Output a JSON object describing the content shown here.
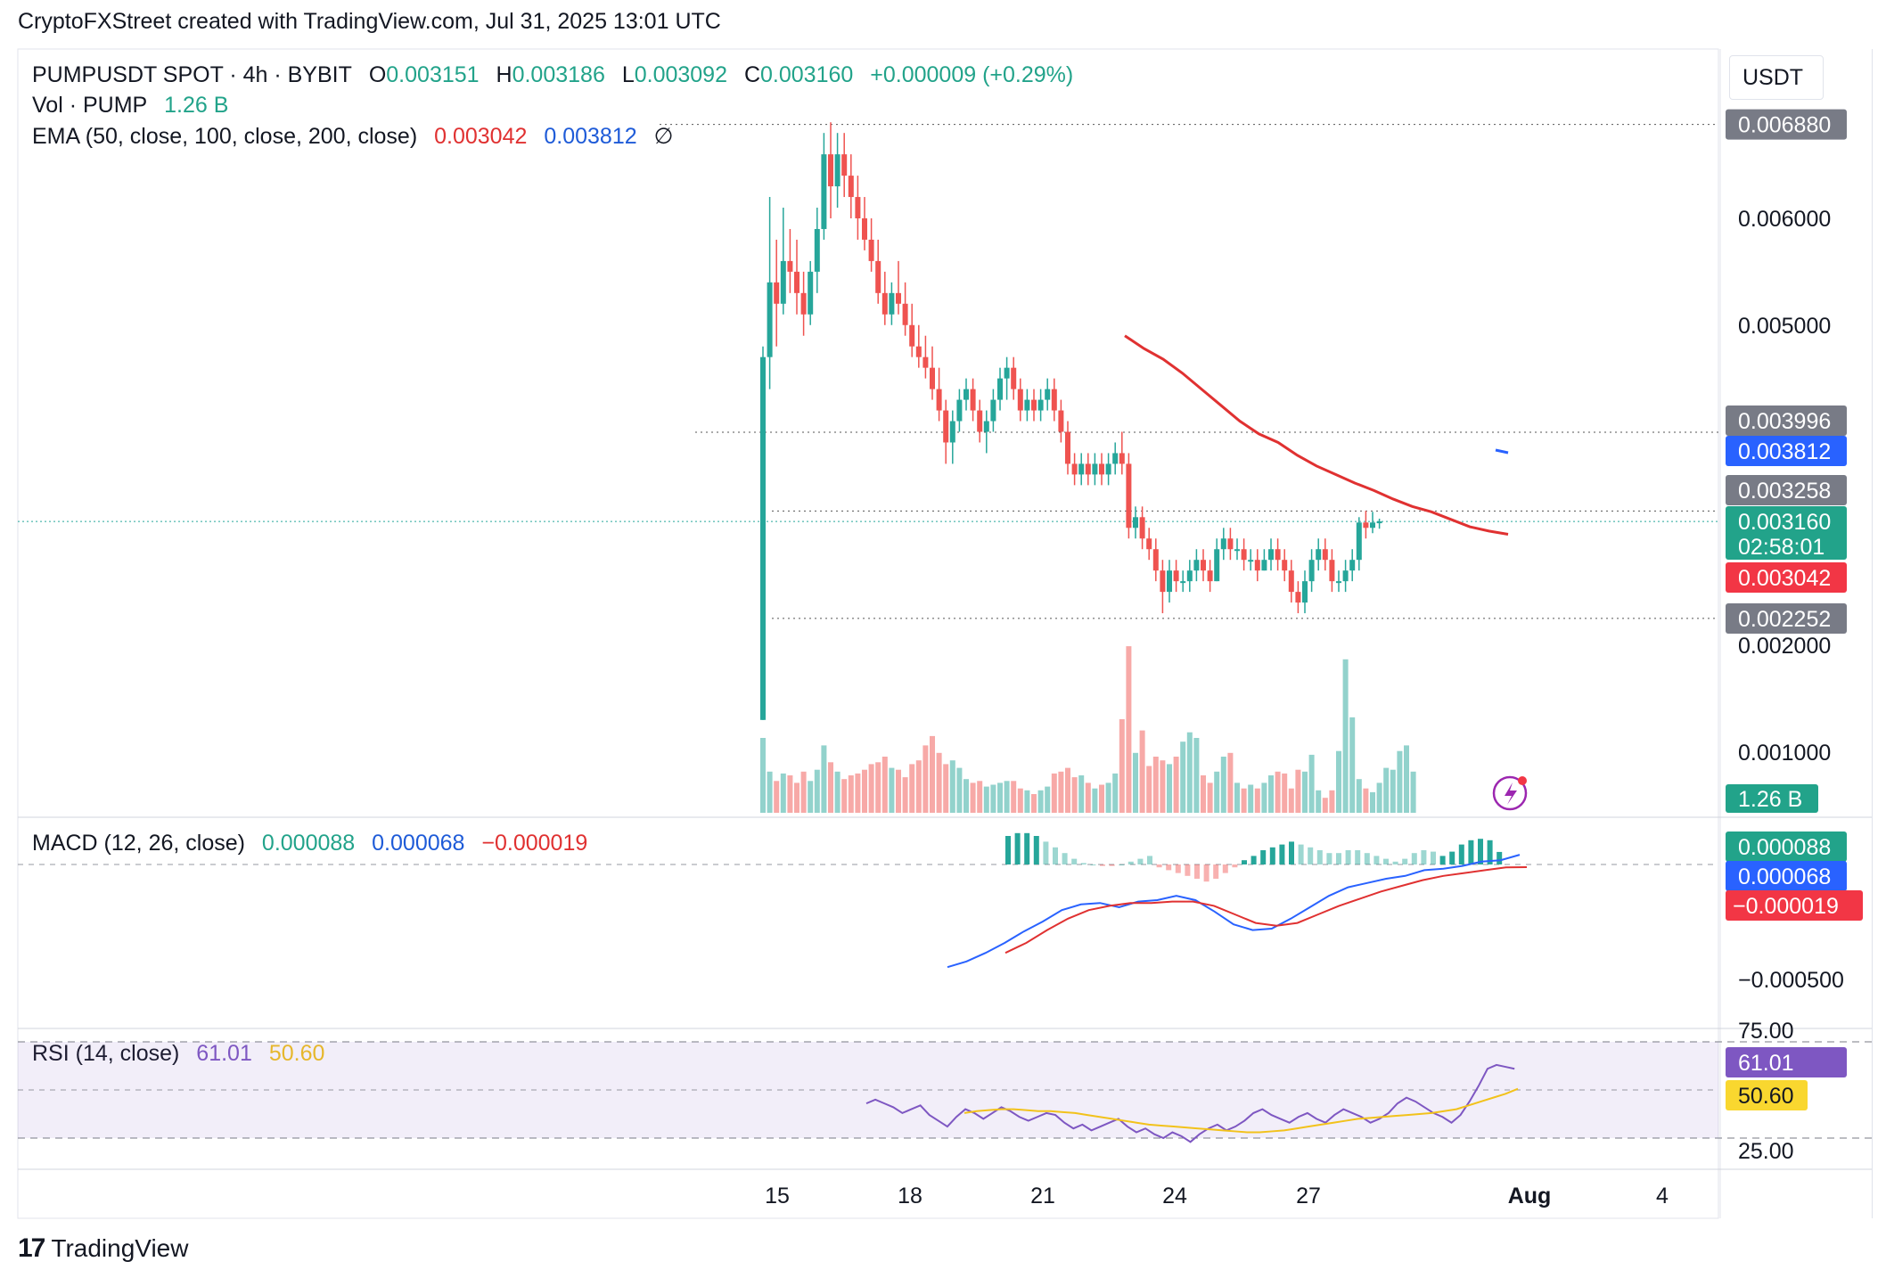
{
  "header": {
    "attribution": "CryptoFXStreet created with TradingView.com, Jul 31, 2025 13:01 UTC"
  },
  "legend": {
    "symbol": "PUMPUSDT SPOT · 4h · BYBIT",
    "open_label": "O",
    "open": "0.003151",
    "high_label": "H",
    "high": "0.003186",
    "low_label": "L",
    "low": "0.003092",
    "close_label": "C",
    "close": "0.003160",
    "change": "+0.000009 (+0.29%)",
    "vol_label": "Vol · PUMP",
    "vol_value": "1.26 B",
    "ema_label": "EMA (50, close, 100, close, 200, close)",
    "ema_50": "0.003042",
    "ema_100": "0.003812",
    "ema_200": "∅",
    "macd_label": "MACD (12, 26, close)",
    "macd_hist": "0.000088",
    "macd_line": "0.000068",
    "macd_signal": "−0.000019",
    "rsi_label": "RSI (14, close)",
    "rsi_value": "61.01",
    "rsi_ma": "50.60"
  },
  "price_axis": {
    "unit": "USDT",
    "ticks": [
      "0.006000",
      "0.005000",
      "0.002000",
      "0.001000"
    ],
    "macd_ticks": [
      "−0.000500"
    ],
    "rsi_ticks": [
      "75.00",
      "25.00"
    ]
  },
  "price_tags": {
    "high_line": "0.006880",
    "level_1": "0.003996",
    "ema_100": "0.003812",
    "level_2": "0.003258",
    "last": "0.003160",
    "countdown": "02:58:01",
    "ema_50": "0.003042",
    "level_3": "0.002252",
    "volume": "1.26 B",
    "macd_hist": "0.000088",
    "macd_line": "0.000068",
    "macd_signal": "−0.000019",
    "rsi": "61.01",
    "rsi_ma": "50.60"
  },
  "time_axis": {
    "labels": [
      "15",
      "18",
      "21",
      "24",
      "27",
      "Aug",
      "4"
    ]
  },
  "footer": {
    "brand": "TradingView",
    "logo": "17"
  },
  "colors": {
    "up": "#26a69a",
    "down": "#ef5350",
    "ema50": "#e03131",
    "ema100": "#2962ff",
    "macd": "#2962ff",
    "signal": "#e03131",
    "rsi": "#7e57c2",
    "rsi_ma": "#f2c21b",
    "tag_gray": "#787b86",
    "tag_green": "#22a38a",
    "tag_red": "#f23645",
    "tag_blue": "#2962ff",
    "tag_purple": "#7e57c2",
    "tag_yellow": "#f9d72f"
  },
  "chart_data": {
    "type": "candlestick",
    "symbol": "PUMPUSDT",
    "interval": "4h",
    "x_labels": [
      "15",
      "18",
      "21",
      "24",
      "27",
      "Aug",
      "4"
    ],
    "ylim": [
      0.0014,
      0.0072
    ],
    "horizontal_levels": [
      0.00688,
      0.003996,
      0.003258,
      0.002252
    ],
    "last_close": 0.00316,
    "ema_50": 0.003042,
    "ema_100": 0.003812,
    "volume_last": "1.26 B",
    "macd": {
      "histogram": 8.8e-05,
      "macd": 6.8e-05,
      "signal": -1.9e-05
    },
    "rsi": {
      "value": 61.01,
      "ma": 50.6,
      "bands": [
        75,
        25
      ]
    },
    "candles": [
      [
        0.0013,
        0.0048,
        0.0013,
        0.0047
      ],
      [
        0.0047,
        0.0062,
        0.0044,
        0.0054
      ],
      [
        0.0054,
        0.0058,
        0.0048,
        0.0052
      ],
      [
        0.0052,
        0.0061,
        0.0051,
        0.0056
      ],
      [
        0.0056,
        0.0059,
        0.0053,
        0.0055
      ],
      [
        0.0055,
        0.0058,
        0.0051,
        0.0053
      ],
      [
        0.0053,
        0.0055,
        0.0049,
        0.0051
      ],
      [
        0.0051,
        0.0056,
        0.005,
        0.0055
      ],
      [
        0.0055,
        0.0061,
        0.0053,
        0.0059
      ],
      [
        0.0059,
        0.0068,
        0.0058,
        0.0066
      ],
      [
        0.0066,
        0.0069,
        0.006,
        0.0063
      ],
      [
        0.0063,
        0.0068,
        0.0061,
        0.0066
      ],
      [
        0.0066,
        0.0068,
        0.0062,
        0.0064
      ],
      [
        0.0064,
        0.0066,
        0.006,
        0.0062
      ],
      [
        0.0062,
        0.0064,
        0.0058,
        0.006
      ],
      [
        0.006,
        0.0062,
        0.0057,
        0.0058
      ],
      [
        0.0058,
        0.006,
        0.0055,
        0.0056
      ],
      [
        0.0056,
        0.0058,
        0.0052,
        0.0053
      ],
      [
        0.0053,
        0.0055,
        0.005,
        0.0051
      ],
      [
        0.0051,
        0.0054,
        0.005,
        0.0053
      ],
      [
        0.0053,
        0.0056,
        0.0051,
        0.0052
      ],
      [
        0.0052,
        0.0054,
        0.0049,
        0.005
      ],
      [
        0.005,
        0.0052,
        0.0047,
        0.0048
      ],
      [
        0.0048,
        0.005,
        0.0046,
        0.0047
      ],
      [
        0.0047,
        0.0049,
        0.0045,
        0.0046
      ],
      [
        0.0046,
        0.0048,
        0.0043,
        0.0044
      ],
      [
        0.0044,
        0.0046,
        0.0041,
        0.0042
      ],
      [
        0.0042,
        0.0043,
        0.0037,
        0.0039
      ],
      [
        0.0039,
        0.0042,
        0.0037,
        0.0041
      ],
      [
        0.0041,
        0.0044,
        0.004,
        0.0043
      ],
      [
        0.0043,
        0.0045,
        0.0042,
        0.0044
      ],
      [
        0.0044,
        0.0045,
        0.0041,
        0.0042
      ],
      [
        0.0042,
        0.0043,
        0.0039,
        0.004
      ],
      [
        0.004,
        0.0042,
        0.0038,
        0.0041
      ],
      [
        0.0041,
        0.0044,
        0.004,
        0.0043
      ],
      [
        0.0043,
        0.0046,
        0.0042,
        0.0045
      ],
      [
        0.0045,
        0.0047,
        0.0043,
        0.0046
      ],
      [
        0.0046,
        0.0047,
        0.0043,
        0.0044
      ],
      [
        0.0044,
        0.0045,
        0.0041,
        0.0042
      ],
      [
        0.0042,
        0.0044,
        0.0041,
        0.0043
      ],
      [
        0.0043,
        0.0044,
        0.0041,
        0.0042
      ],
      [
        0.0042,
        0.0044,
        0.0041,
        0.0043
      ],
      [
        0.0043,
        0.0045,
        0.0042,
        0.0044
      ],
      [
        0.0044,
        0.0045,
        0.0041,
        0.0042
      ],
      [
        0.0042,
        0.0043,
        0.0039,
        0.004
      ],
      [
        0.004,
        0.0041,
        0.0036,
        0.0037
      ],
      [
        0.0037,
        0.0038,
        0.0035,
        0.0036
      ],
      [
        0.0036,
        0.0038,
        0.0035,
        0.0037
      ],
      [
        0.0037,
        0.0038,
        0.0035,
        0.0036
      ],
      [
        0.0036,
        0.0038,
        0.0035,
        0.0037
      ],
      [
        0.0037,
        0.0038,
        0.0035,
        0.0036
      ],
      [
        0.0036,
        0.0038,
        0.0035,
        0.0037
      ],
      [
        0.0037,
        0.0039,
        0.0036,
        0.0038
      ],
      [
        0.0038,
        0.004,
        0.0036,
        0.0037
      ],
      [
        0.0037,
        0.0038,
        0.003,
        0.0031
      ],
      [
        0.0031,
        0.0033,
        0.003,
        0.0032
      ],
      [
        0.0032,
        0.0033,
        0.0029,
        0.003
      ],
      [
        0.003,
        0.0031,
        0.0028,
        0.0029
      ],
      [
        0.0029,
        0.003,
        0.0026,
        0.0027
      ],
      [
        0.0027,
        0.0028,
        0.0023,
        0.0025
      ],
      [
        0.0025,
        0.0028,
        0.0024,
        0.0027
      ],
      [
        0.0027,
        0.0028,
        0.0025,
        0.0026
      ],
      [
        0.0026,
        0.0027,
        0.0025,
        0.0026
      ],
      [
        0.0026,
        0.0028,
        0.0025,
        0.0027
      ],
      [
        0.0027,
        0.0029,
        0.0026,
        0.0028
      ],
      [
        0.0028,
        0.0029,
        0.0026,
        0.0027
      ],
      [
        0.0027,
        0.0028,
        0.0025,
        0.0026
      ],
      [
        0.0026,
        0.003,
        0.0026,
        0.0029
      ],
      [
        0.0029,
        0.0031,
        0.0028,
        0.003
      ],
      [
        0.003,
        0.0031,
        0.0028,
        0.0029
      ],
      [
        0.0029,
        0.003,
        0.0028,
        0.0029
      ],
      [
        0.0029,
        0.003,
        0.0027,
        0.0028
      ],
      [
        0.0028,
        0.0029,
        0.0027,
        0.0028
      ],
      [
        0.0028,
        0.0029,
        0.0026,
        0.0027
      ],
      [
        0.0027,
        0.0029,
        0.0027,
        0.0028
      ],
      [
        0.0028,
        0.003,
        0.0027,
        0.0029
      ],
      [
        0.0029,
        0.003,
        0.0027,
        0.0028
      ],
      [
        0.0028,
        0.0029,
        0.0026,
        0.0027
      ],
      [
        0.0027,
        0.0028,
        0.0024,
        0.0025
      ],
      [
        0.0025,
        0.0026,
        0.0023,
        0.0024
      ],
      [
        0.0024,
        0.0027,
        0.0023,
        0.0026
      ],
      [
        0.0026,
        0.0029,
        0.0025,
        0.0028
      ],
      [
        0.0028,
        0.003,
        0.0027,
        0.0029
      ],
      [
        0.0029,
        0.003,
        0.0027,
        0.0028
      ],
      [
        0.0028,
        0.0029,
        0.0025,
        0.0026
      ],
      [
        0.0026,
        0.0027,
        0.0025,
        0.0026
      ],
      [
        0.0026,
        0.0028,
        0.0025,
        0.0027
      ],
      [
        0.0027,
        0.0029,
        0.0026,
        0.0028
      ],
      [
        0.0028,
        0.0032,
        0.0027,
        0.00315
      ],
      [
        0.00315,
        0.00326,
        0.003,
        0.0031
      ],
      [
        0.0031,
        0.00325,
        0.00305,
        0.00315
      ],
      [
        0.00315,
        0.003186,
        0.003092,
        0.00316
      ]
    ],
    "volume": [
      0.4,
      0.22,
      0.17,
      0.21,
      0.2,
      0.16,
      0.22,
      0.17,
      0.23,
      0.36,
      0.27,
      0.22,
      0.18,
      0.2,
      0.21,
      0.23,
      0.26,
      0.27,
      0.3,
      0.24,
      0.23,
      0.19,
      0.26,
      0.28,
      0.36,
      0.41,
      0.32,
      0.26,
      0.28,
      0.24,
      0.18,
      0.16,
      0.17,
      0.14,
      0.15,
      0.16,
      0.17,
      0.17,
      0.13,
      0.12,
      0.1,
      0.12,
      0.14,
      0.21,
      0.22,
      0.24,
      0.19,
      0.2,
      0.16,
      0.13,
      0.15,
      0.16,
      0.21,
      0.5,
      0.89,
      0.32,
      0.44,
      0.25,
      0.3,
      0.28,
      0.26,
      0.3,
      0.38,
      0.43,
      0.4,
      0.2,
      0.16,
      0.22,
      0.3,
      0.32,
      0.16,
      0.13,
      0.15,
      0.13,
      0.16,
      0.2,
      0.22,
      0.21,
      0.13,
      0.23,
      0.22,
      0.31,
      0.12,
      0.08,
      0.12,
      0.33,
      0.82,
      0.51,
      0.18,
      0.13,
      0.11,
      0.16,
      0.24,
      0.23,
      0.33,
      0.36,
      0.22
    ],
    "ema50_path": [
      0.0049,
      0.00478,
      0.00468,
      0.00455,
      0.0044,
      0.00425,
      0.0041,
      0.00398,
      0.0039,
      0.00378,
      0.00368,
      0.0036,
      0.00352,
      0.00345,
      0.00337,
      0.0033,
      0.00325,
      0.00318,
      0.00311,
      0.00307,
      0.00304
    ],
    "macd_hist": [
      0.0002,
      0.00022,
      0.00022,
      0.0002,
      0.00016,
      0.00012,
      8e-05,
      4e-05,
      1e-05,
      0.0,
      -1e-05,
      -1e-05,
      0.0,
      2e-05,
      4e-05,
      6e-05,
      -2e-05,
      -4e-05,
      -6e-05,
      -8e-05,
      -0.0001,
      -0.00012,
      -0.0001,
      -6e-05,
      -2e-05,
      3e-05,
      6e-05,
      0.0001,
      0.00012,
      0.00014,
      0.00016,
      0.00014,
      0.00012,
      0.0001,
      8e-05,
      8e-05,
      0.0001,
      0.0001,
      8e-05,
      6e-05,
      4e-05,
      2e-05,
      4e-05,
      8e-05,
      0.0001,
      9e-05,
      6e-05,
      9e-05,
      0.00014,
      0.00017,
      0.00018,
      0.00017,
      8.8e-05
    ],
    "macd_line": [
      -0.00072,
      -0.00068,
      -0.00062,
      -0.00055,
      -0.00047,
      -0.0004,
      -0.00032,
      -0.00028,
      -0.00027,
      -0.0003,
      -0.00026,
      -0.00025,
      -0.00022,
      -0.00025,
      -0.00033,
      -0.00042,
      -0.00046,
      -0.00045,
      -0.00038,
      -0.0003,
      -0.00022,
      -0.00016,
      -0.00013,
      -0.0001,
      -8e-05,
      -4e-05,
      -3e-05,
      -1e-05,
      2e-05,
      3e-05,
      6.8e-05
    ],
    "signal_line": [
      -0.00062,
      -0.00055,
      -0.00046,
      -0.00038,
      -0.00032,
      -0.00029,
      -0.00027,
      -0.00027,
      -0.00026,
      -0.00026,
      -0.00029,
      -0.00035,
      -0.00041,
      -0.00043,
      -0.00041,
      -0.00035,
      -0.00029,
      -0.00024,
      -0.00019,
      -0.00015,
      -0.00011,
      -8e-05,
      -6e-05,
      -4e-05,
      -2e-05,
      -1.9e-05
    ],
    "rsi_series": [
      43,
      45,
      43,
      41,
      38,
      40,
      42,
      37,
      34,
      31,
      36,
      40,
      38,
      35,
      38,
      41,
      39,
      36,
      34,
      36,
      38,
      37,
      33,
      30,
      32,
      29,
      31,
      33,
      35,
      31,
      28,
      30,
      27,
      25,
      28,
      26,
      23,
      27,
      30,
      32,
      29,
      31,
      34,
      38,
      40,
      37,
      35,
      33,
      36,
      38,
      35,
      33,
      37,
      40,
      38,
      36,
      33,
      35,
      38,
      43,
      46,
      44,
      41,
      38,
      36,
      33,
      37,
      44,
      52,
      61,
      63,
      62,
      61.01
    ],
    "rsi_ma_series": [
      38,
      39,
      39.5,
      40,
      40,
      39.5,
      39,
      39,
      38.5,
      38,
      37,
      36,
      35,
      34,
      33,
      32,
      31.5,
      31,
      30.5,
      30,
      29.5,
      29,
      28.5,
      28,
      28,
      28.5,
      29,
      30,
      31,
      32,
      33,
      34,
      35,
      35.5,
      36,
      36.5,
      37,
      37.5,
      38,
      39,
      40,
      42,
      44,
      46,
      48,
      50.6
    ]
  }
}
